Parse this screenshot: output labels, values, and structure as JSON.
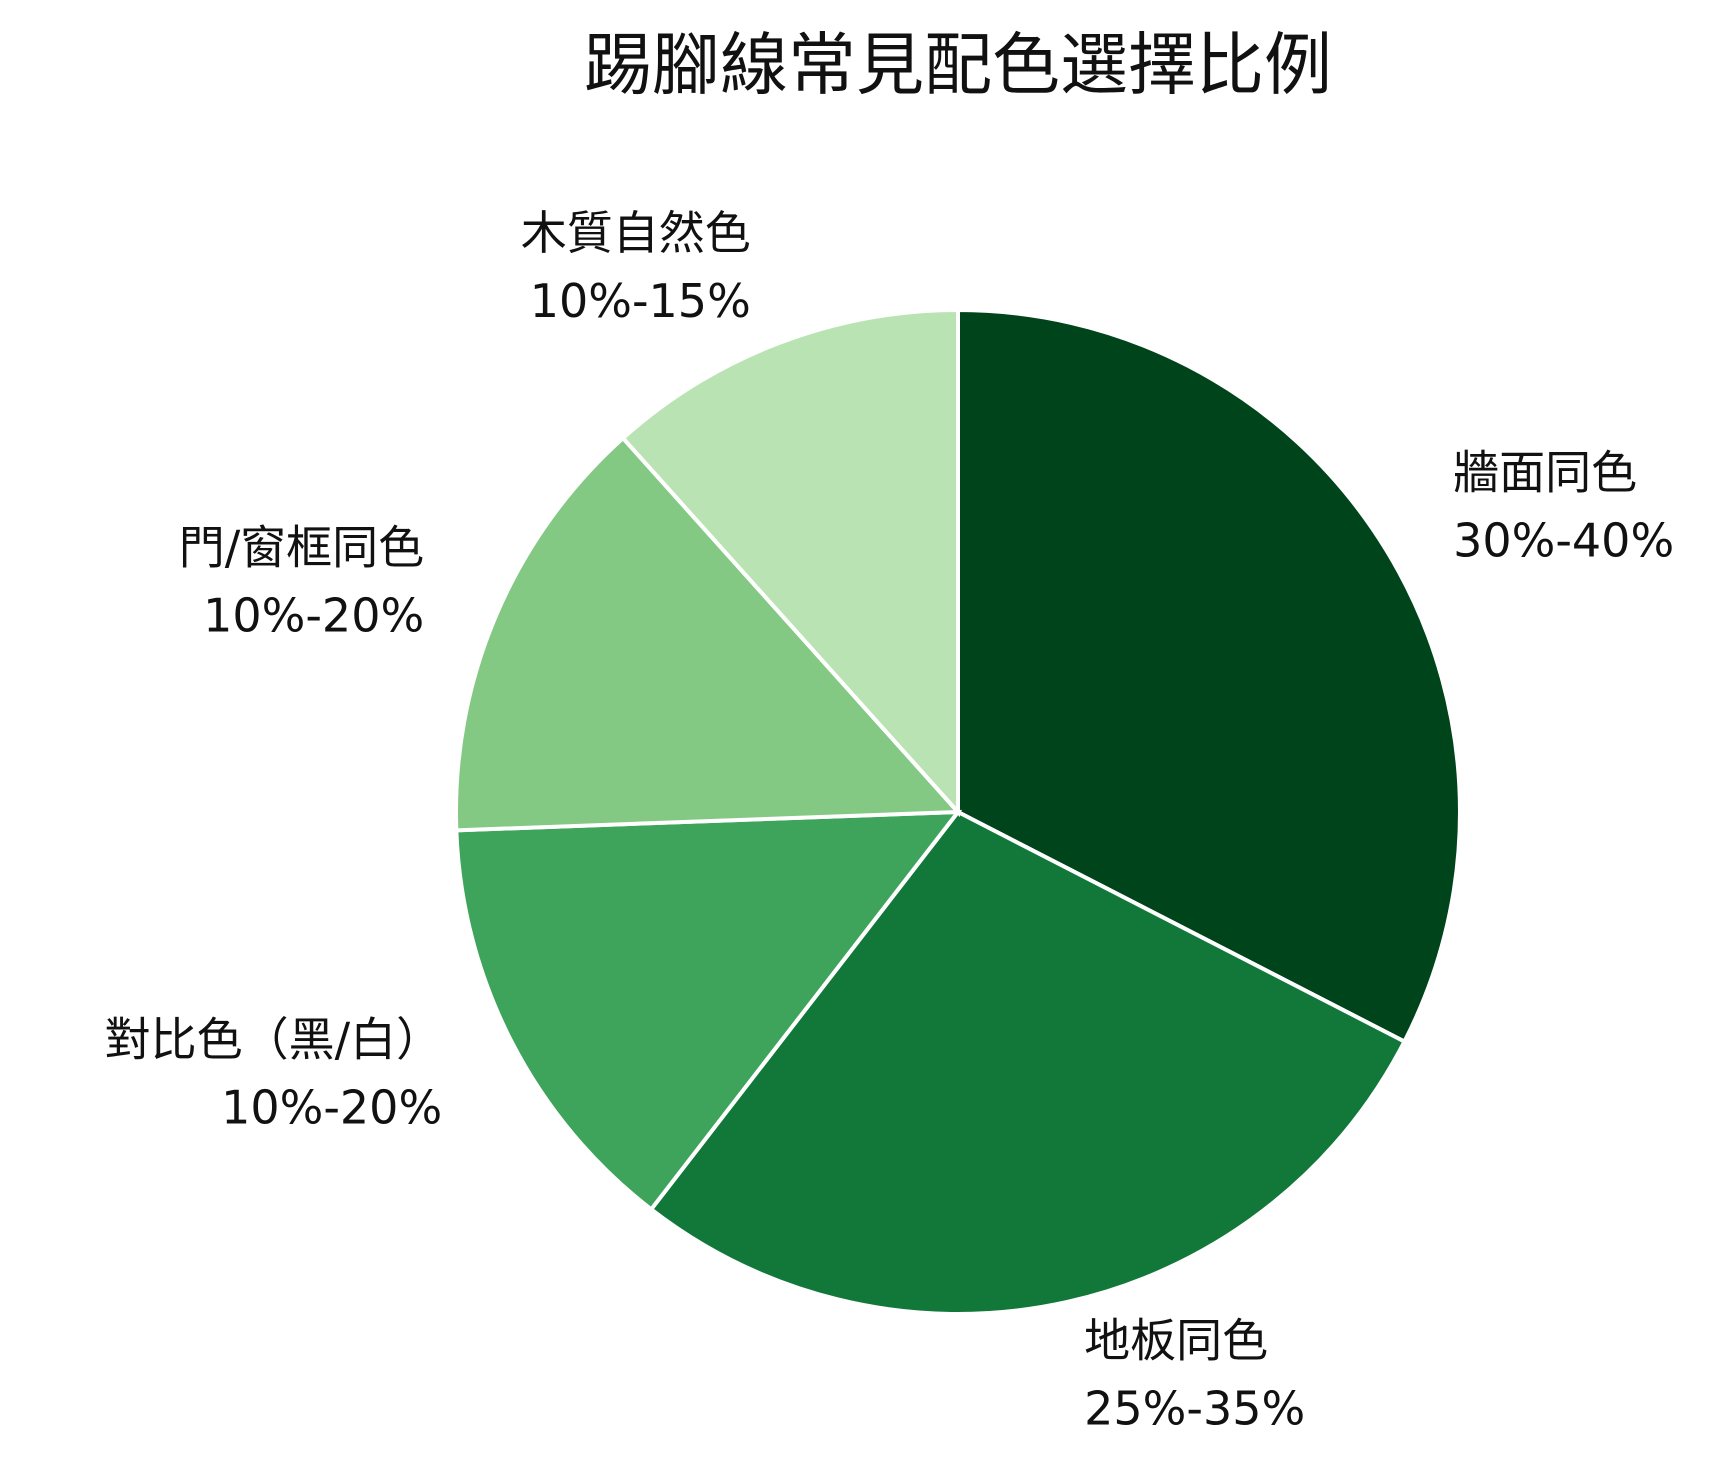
{
  "chart_data": {
    "type": "pie",
    "title": "踢腳線常見配色選擇比例",
    "categories": [
      "牆面同色",
      "地板同色",
      "對比色（黑/白）",
      "門/窗框同色",
      "木質自然色"
    ],
    "values": [
      35,
      30,
      15,
      15,
      12.5
    ],
    "value_labels": [
      "30%-40%",
      "25%-35%",
      "10%-20%",
      "10%-20%",
      "10%-15%"
    ],
    "colors": [
      "#00441b",
      "#11783a",
      "#3fa45b",
      "#83c984",
      "#b9e3b3"
    ]
  }
}
